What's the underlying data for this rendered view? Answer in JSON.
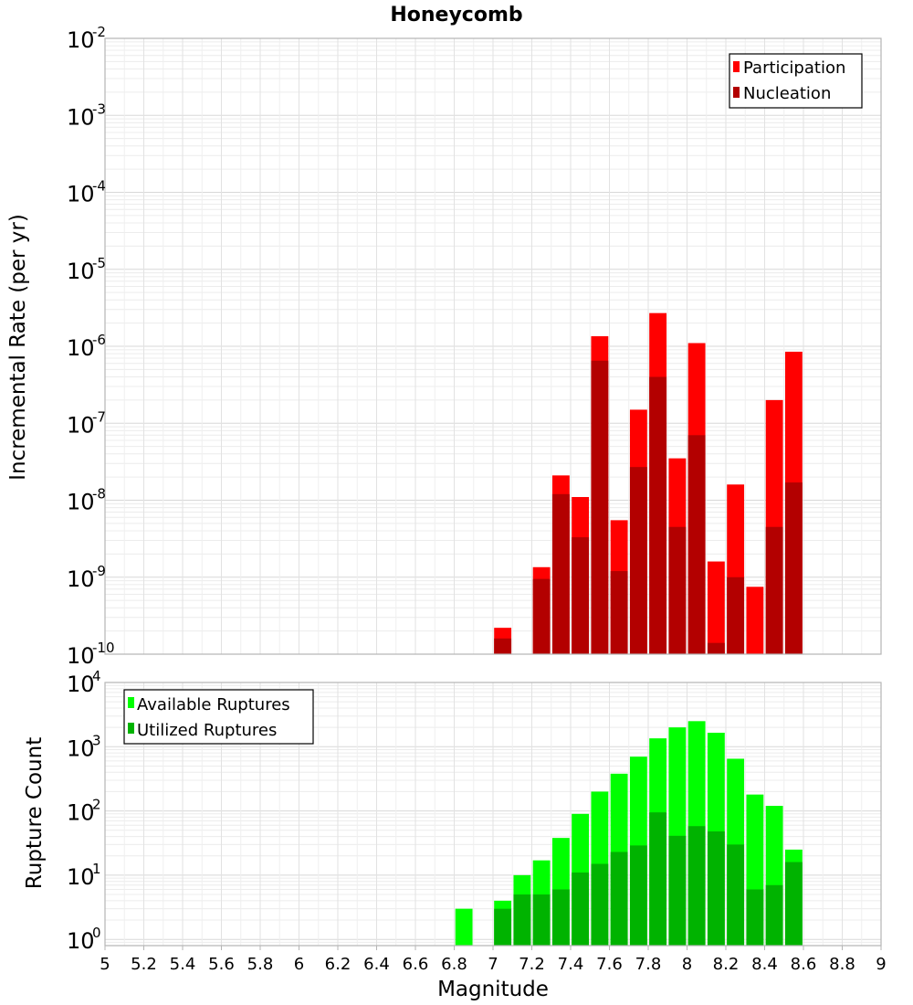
{
  "chart_data": [
    {
      "type": "bar",
      "title": "Honeycomb",
      "xlabel": "",
      "ylabel": "Incremental Rate (per yr)",
      "yscale": "log",
      "ylim": [
        1e-10,
        0.01
      ],
      "xlim": [
        5,
        9
      ],
      "grid": true,
      "legend_position": "top-right",
      "colors": {
        "participation": "#ff0000",
        "nucleation": "#b30000"
      },
      "x": [
        7.05,
        7.25,
        7.35,
        7.45,
        7.55,
        7.65,
        7.75,
        7.85,
        7.95,
        8.05,
        8.15,
        8.25,
        8.35,
        8.45,
        8.55
      ],
      "series": [
        {
          "name": "Participation",
          "values": [
            2.2e-10,
            1.35e-09,
            2.1e-08,
            1.1e-08,
            1.35e-06,
            5.5e-09,
            1.5e-07,
            2.7e-06,
            3.5e-08,
            1.1e-06,
            1.6e-09,
            1.6e-08,
            7.5e-10,
            2e-07,
            8.5e-07
          ]
        },
        {
          "name": "Nucleation",
          "values": [
            1.6e-10,
            9.5e-10,
            1.2e-08,
            3.3e-09,
            6.5e-07,
            1.2e-09,
            2.7e-08,
            4e-07,
            4.5e-09,
            7e-08,
            1.4e-10,
            1e-09,
            null,
            4.5e-09,
            1.7e-08
          ]
        }
      ]
    },
    {
      "type": "bar",
      "title": "",
      "xlabel": "Magnitude",
      "ylabel": "Rupture Count",
      "yscale": "log",
      "ylim": [
        0.8,
        10000
      ],
      "xlim": [
        5,
        9
      ],
      "grid": true,
      "legend_position": "top-left",
      "colors": {
        "available": "#00ff00",
        "utilized": "#00b300"
      },
      "x": [
        6.85,
        7.05,
        7.15,
        7.25,
        7.35,
        7.45,
        7.55,
        7.65,
        7.75,
        7.85,
        7.95,
        8.05,
        8.15,
        8.25,
        8.35,
        8.45,
        8.55
      ],
      "series": [
        {
          "name": "Available Ruptures",
          "values": [
            3,
            4,
            10,
            17,
            38,
            90,
            200,
            380,
            700,
            1350,
            2000,
            2500,
            1650,
            650,
            180,
            120,
            25
          ]
        },
        {
          "name": "Utilized Ruptures",
          "values": [
            null,
            3,
            5,
            5,
            6,
            11,
            15,
            23,
            29,
            95,
            41,
            58,
            48,
            30,
            6,
            7,
            16
          ]
        }
      ]
    }
  ],
  "x_ticks": [
    "5",
    "5.2",
    "5.4",
    "5.6",
    "5.8",
    "6",
    "6.2",
    "6.4",
    "6.6",
    "6.8",
    "7",
    "7.2",
    "7.4",
    "7.6",
    "7.8",
    "8",
    "8.2",
    "8.4",
    "8.6",
    "8.8",
    "9"
  ],
  "top_y_ticks": {
    "base": "10",
    "exponents": [
      "-2",
      "-3",
      "-4",
      "-5",
      "-6",
      "-7",
      "-8",
      "-9",
      "-10"
    ]
  },
  "bottom_y_ticks": {
    "base": "10",
    "exponents": [
      "4",
      "3",
      "2",
      "1",
      "0"
    ]
  }
}
